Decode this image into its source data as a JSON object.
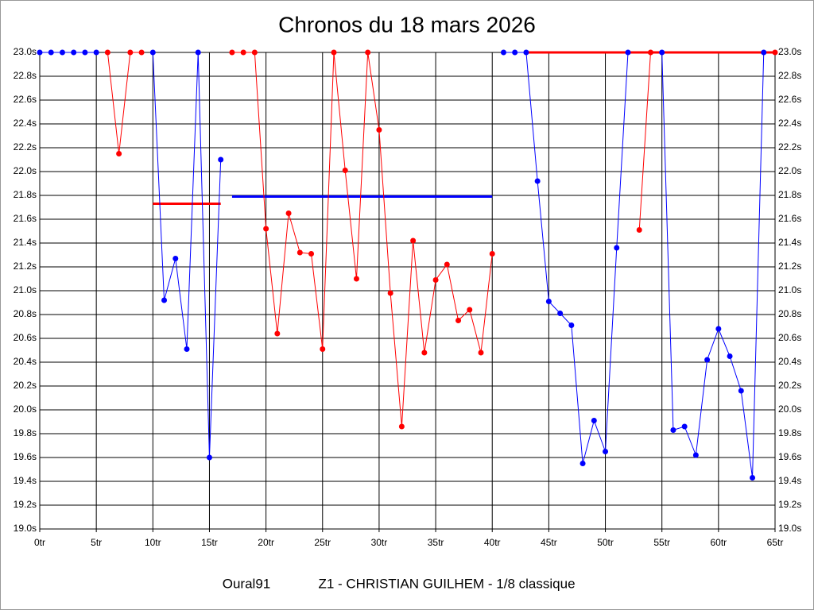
{
  "chart_data": {
    "type": "line",
    "title": "Chronos du 18 mars 2026",
    "footer": [
      "Oural91",
      "Z1 - CHRISTIAN GUILHEM - 1/8 classique"
    ],
    "x": [
      0,
      1,
      2,
      3,
      4,
      5,
      6,
      7,
      8,
      9,
      10,
      11,
      12,
      13,
      14,
      15,
      16,
      17,
      18,
      19,
      20,
      21,
      22,
      23,
      24,
      25,
      26,
      27,
      28,
      29,
      30,
      31,
      32,
      33,
      34,
      35,
      36,
      37,
      38,
      39,
      40,
      41,
      42,
      43,
      44,
      45,
      46,
      47,
      48,
      49,
      50,
      51,
      52,
      53,
      54,
      55,
      56,
      57,
      58,
      59,
      60,
      61,
      62,
      63,
      64,
      65
    ],
    "series": [
      {
        "color": "#0000ff",
        "values": [
          23.0,
          23.0,
          23.0,
          23.0,
          23.0,
          23.0,
          null,
          null,
          null,
          null,
          23.0,
          20.92,
          21.27,
          20.51,
          23.0,
          19.6,
          22.1,
          null,
          null,
          null,
          null,
          null,
          null,
          null,
          null,
          null,
          null,
          null,
          null,
          null,
          null,
          null,
          null,
          null,
          null,
          null,
          null,
          null,
          null,
          null,
          null,
          23.0,
          23.0,
          23.0,
          21.92,
          20.91,
          20.81,
          20.71,
          19.55,
          19.91,
          19.65,
          21.36,
          23.0,
          null,
          null,
          23.0,
          19.83,
          19.86,
          19.62,
          20.42,
          20.68,
          20.45,
          20.16,
          19.43,
          23.0,
          null
        ]
      },
      {
        "color": "#ff0000",
        "values": [
          null,
          null,
          null,
          null,
          null,
          null,
          23.0,
          22.15,
          23.0,
          23.0,
          null,
          null,
          null,
          null,
          null,
          null,
          null,
          23.0,
          23.0,
          23.0,
          21.52,
          20.64,
          21.65,
          21.32,
          21.31,
          20.51,
          23.0,
          22.01,
          21.1,
          23.0,
          22.35,
          20.98,
          19.86,
          21.42,
          20.48,
          21.09,
          21.22,
          20.75,
          20.84,
          20.48,
          21.31,
          null,
          null,
          null,
          null,
          null,
          null,
          null,
          null,
          null,
          null,
          null,
          null,
          21.51,
          23.0,
          null,
          null,
          null,
          null,
          null,
          null,
          null,
          null,
          null,
          null,
          23.0
        ]
      }
    ],
    "reference_lines": [
      {
        "color": "#ff0000",
        "x": [
          10,
          16
        ],
        "y": 21.73
      },
      {
        "color": "#0000ff",
        "x": [
          17,
          40
        ],
        "y": 21.79
      },
      {
        "color": "#ff0000",
        "x": [
          43,
          65
        ],
        "y": 23.0
      }
    ],
    "xlim": [
      0,
      65
    ],
    "xticks": [
      {
        "value": 0,
        "label": "0tr"
      },
      {
        "value": 5,
        "label": "5tr"
      },
      {
        "value": 10,
        "label": "10tr"
      },
      {
        "value": 15,
        "label": "15tr"
      },
      {
        "value": 20,
        "label": "20tr"
      },
      {
        "value": 25,
        "label": "25tr"
      },
      {
        "value": 30,
        "label": "30tr"
      },
      {
        "value": 35,
        "label": "35tr"
      },
      {
        "value": 40,
        "label": "40tr"
      },
      {
        "value": 45,
        "label": "45tr"
      },
      {
        "value": 50,
        "label": "50tr"
      },
      {
        "value": 55,
        "label": "55tr"
      },
      {
        "value": 60,
        "label": "60tr"
      },
      {
        "value": 65,
        "label": "65tr"
      }
    ],
    "ylim": [
      19.0,
      23.0
    ],
    "yticks": [
      {
        "value": 19.0,
        "label": "19.0s"
      },
      {
        "value": 19.2,
        "label": "19.2s"
      },
      {
        "value": 19.4,
        "label": "19.4s"
      },
      {
        "value": 19.6,
        "label": "19.6s"
      },
      {
        "value": 19.8,
        "label": "19.8s"
      },
      {
        "value": 20.0,
        "label": "20.0s"
      },
      {
        "value": 20.2,
        "label": "20.2s"
      },
      {
        "value": 20.4,
        "label": "20.4s"
      },
      {
        "value": 20.6,
        "label": "20.6s"
      },
      {
        "value": 20.8,
        "label": "20.8s"
      },
      {
        "value": 21.0,
        "label": "21.0s"
      },
      {
        "value": 21.2,
        "label": "21.2s"
      },
      {
        "value": 21.4,
        "label": "21.4s"
      },
      {
        "value": 21.6,
        "label": "21.6s"
      },
      {
        "value": 21.8,
        "label": "21.8s"
      },
      {
        "value": 22.0,
        "label": "22.0s"
      },
      {
        "value": 22.2,
        "label": "22.2s"
      },
      {
        "value": 22.4,
        "label": "22.4s"
      },
      {
        "value": 22.6,
        "label": "22.6s"
      },
      {
        "value": 22.8,
        "label": "22.8s"
      },
      {
        "value": 23.0,
        "label": "23.0s"
      }
    ],
    "grid": true
  }
}
